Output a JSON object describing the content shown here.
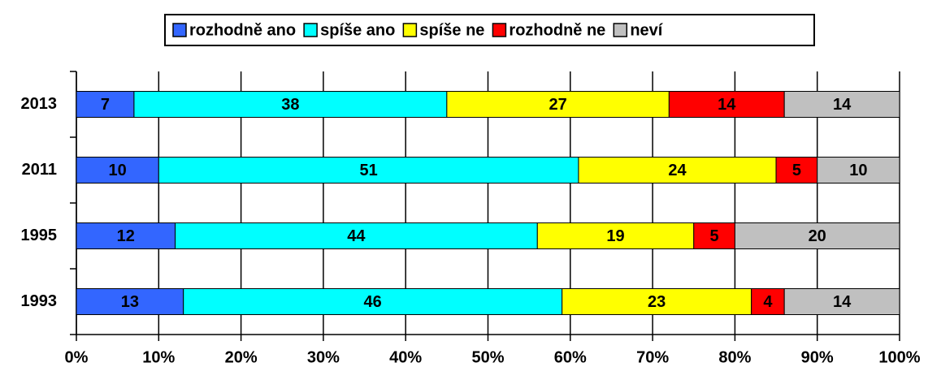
{
  "chart_data": {
    "type": "stacked-barh",
    "categories": [
      "2013",
      "2011",
      "1995",
      "1993"
    ],
    "series": [
      {
        "name": "rozhodně ano",
        "color": "#3366ff",
        "values": [
          7,
          10,
          12,
          13
        ]
      },
      {
        "name": "spíše ano",
        "color": "#00ffff",
        "values": [
          38,
          51,
          44,
          46
        ]
      },
      {
        "name": "spíše ne",
        "color": "#ffff00",
        "values": [
          27,
          24,
          19,
          23
        ]
      },
      {
        "name": "rozhodně ne",
        "color": "#ff0000",
        "values": [
          14,
          5,
          5,
          4
        ]
      },
      {
        "name": "neví",
        "color": "#c0c0c0",
        "values": [
          14,
          10,
          20,
          14
        ]
      }
    ],
    "xlim": [
      0,
      100
    ],
    "xticks": [
      {
        "value": 0,
        "label": "0%"
      },
      {
        "value": 10,
        "label": "10%"
      },
      {
        "value": 20,
        "label": "20%"
      },
      {
        "value": 30,
        "label": "30%"
      },
      {
        "value": 40,
        "label": "40%"
      },
      {
        "value": 50,
        "label": "50%"
      },
      {
        "value": 60,
        "label": "60%"
      },
      {
        "value": 70,
        "label": "70%"
      },
      {
        "value": 80,
        "label": "80%"
      },
      {
        "value": 90,
        "label": "90%"
      },
      {
        "value": 100,
        "label": "100%"
      }
    ],
    "grid": true,
    "legend": "top"
  }
}
